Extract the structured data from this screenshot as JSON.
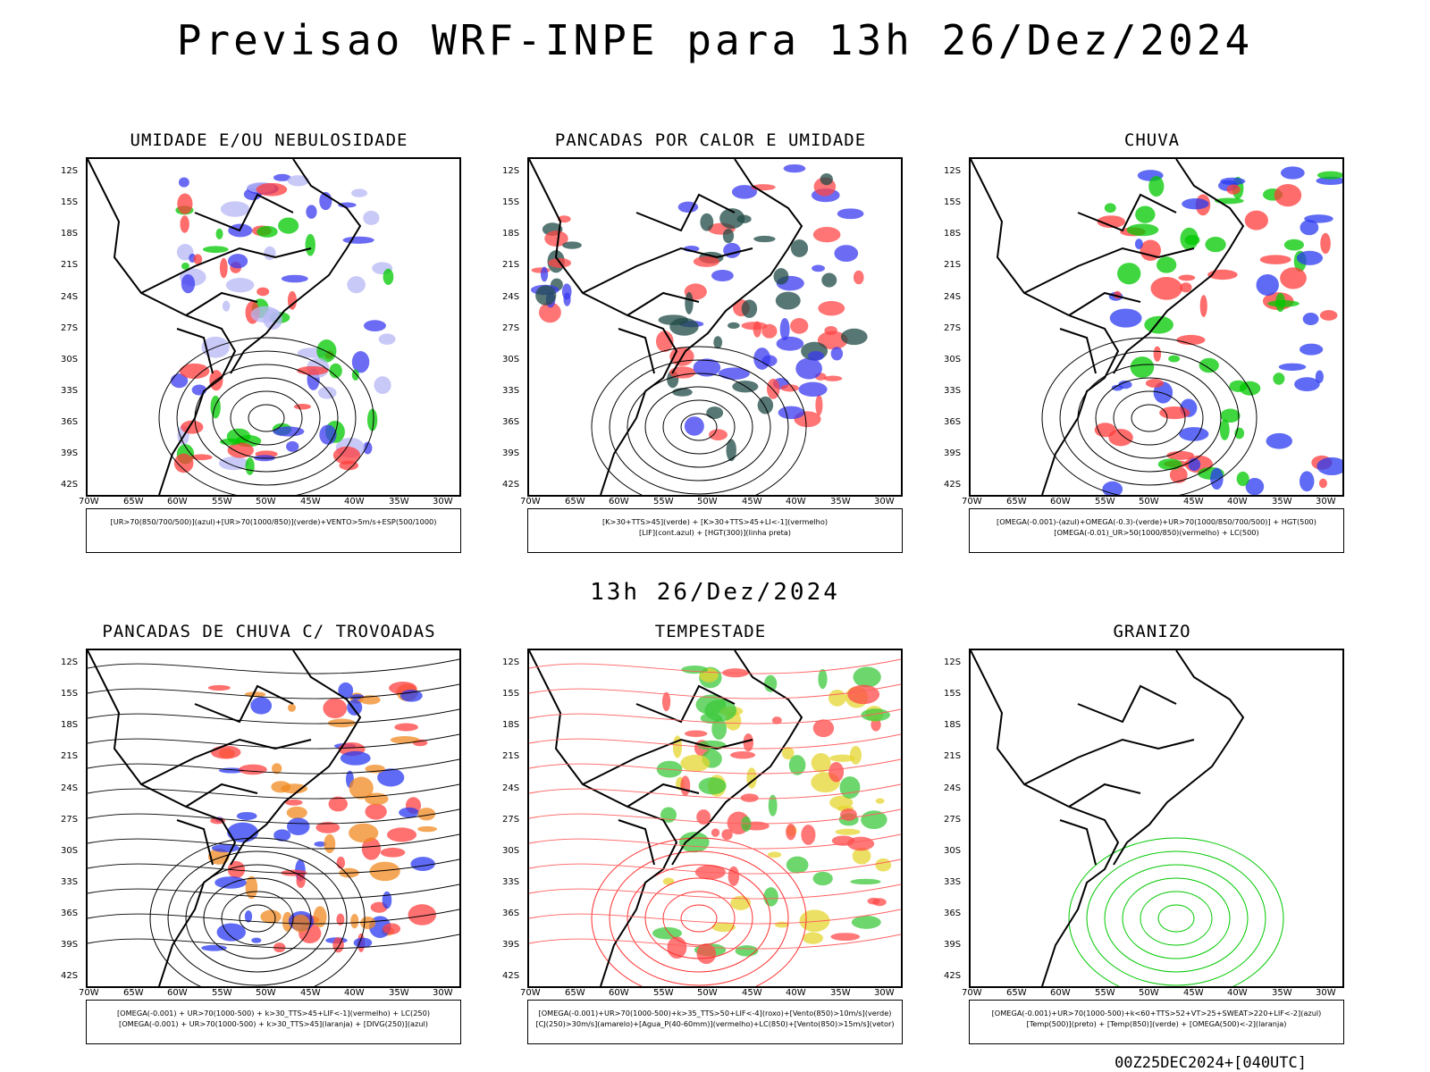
{
  "header": {
    "title": "Previsao WRF-INPE  para 13h 26/Dez/2024"
  },
  "mid": {
    "date": "13h 26/Dez/2024"
  },
  "footer": {
    "run": "00Z25DEC2024+[040UTC]"
  },
  "axes": {
    "lat": [
      "12S",
      "15S",
      "18S",
      "21S",
      "24S",
      "27S",
      "30S",
      "33S",
      "36S",
      "39S",
      "42S"
    ],
    "lon": [
      "70W",
      "65W",
      "60W",
      "55W",
      "50W",
      "45W",
      "40W",
      "35W",
      "30W"
    ]
  },
  "panels": [
    {
      "id": "umidade",
      "title": "UMIDADE E/OU NEBULOSIDADE",
      "legend": [
        "[UR>70(850/700/500)](azul)+[UR>70(1000/850)](verde)+VENTO>5m/s+ESP(500/1000)"
      ],
      "colors": {
        "a": "#3a3af0",
        "b": "#b7b7f5",
        "c": "#00c800",
        "d": "#ff3b3b"
      }
    },
    {
      "id": "pancadas-calor",
      "title": "PANCADAS POR CALOR E UMIDADE",
      "legend": [
        "[K>30+TTS>45](verde) + [K>30+TTS>45+LI<-1](vermelho)",
        "[LIF](cont.azul) + [HGT(300)](linha preta)"
      ],
      "colors": {
        "a": "#ff4545",
        "b": "#1f4a45",
        "c": "#3a3af0"
      }
    },
    {
      "id": "chuva",
      "title": "CHUVA",
      "legend": [
        "[OMEGA(-0.001)-(azul)+OMEGA(-0.3)-(verde)+UR>70(1000/850/700/500)] + HGT(500)",
        "[OMEGA(-0.01)_UR>50(1000/850)(vermelho) + LC(500)"
      ],
      "colors": {
        "a": "#2a3af0",
        "b": "#00c800",
        "c": "#ff3b3b"
      }
    },
    {
      "id": "trovoadas",
      "title": "PANCADAS DE CHUVA C/ TROVOADAS",
      "legend": [
        "[OMEGA(-0.001) + UR>70(1000-500) + k>30_TTS>45+LIF<-1](vermelho) + LC(250)",
        "[OMEGA(-0.001) + UR>70(1000-500) + k>30_TTS>45](laranja) + [DIVG(250)](azul)"
      ],
      "colors": {
        "a": "#ff4040",
        "b": "#f08a20",
        "c": "#2a3af0"
      }
    },
    {
      "id": "tempestade",
      "title": "TEMPESTADE",
      "legend": [
        "[OMEGA(-0.001)+UR>70(1000-500)+k>35_TTS>50+LIF<-4](roxo)+[Vento(850)>10m/s](verde)",
        "[CJ(250)>30m/s](amarelo)+[Agua_P(40-60mm)](vermelho)+LC(850)+[Vento(850)>15m/s](vetor)"
      ],
      "colors": {
        "a": "#e6d530",
        "b": "#3cc83c",
        "c": "#ff4a4a"
      }
    },
    {
      "id": "granizo",
      "title": "GRANIZO",
      "legend": [
        "[OMEGA(-0.001)+UR>70(1000-500)+k<60+TTS>52+VT>25+SWEAT>220+LIF<-2](azul)",
        "[Temp(500)](preto) + [Temp(850)](verde) + [OMEGA(500)<-2](laranja)"
      ],
      "colors": {
        "a": "#00c800",
        "b": "#f08a20",
        "c": "#000000"
      }
    }
  ]
}
